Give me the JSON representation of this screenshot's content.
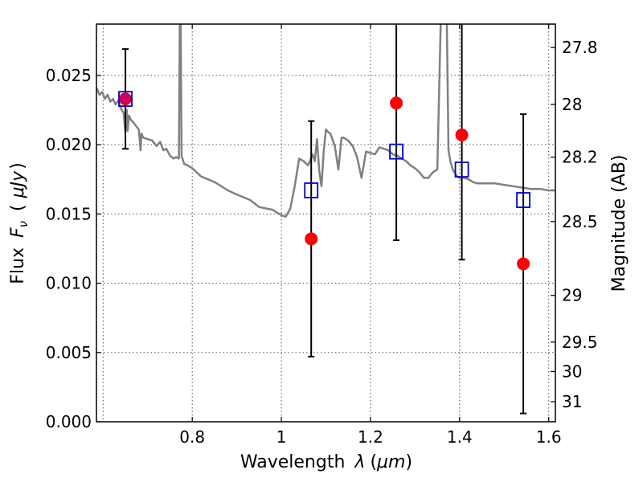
{
  "chart_data": {
    "type": "scatter",
    "xlabel": "Wavelength",
    "xlabel_symbol": "λ",
    "xlabel_unit": "μm",
    "ylabel": "Flux",
    "ylabel_symbol": "F",
    "ylabel_subscript": "ν",
    "ylabel_unit": "μJy",
    "y2label": "Magnitude (AB)",
    "xlim": [
      0.585,
      1.615
    ],
    "ylim": [
      0.0,
      0.0287
    ],
    "grid": true,
    "x_ticks": [
      {
        "value": 0.8,
        "label": "0.8"
      },
      {
        "value": 1.0,
        "label": "1"
      },
      {
        "value": 1.2,
        "label": "1.2"
      },
      {
        "value": 1.4,
        "label": "1.4"
      },
      {
        "value": 1.6,
        "label": "1.6"
      }
    ],
    "y_ticks": [
      {
        "value": 0.0,
        "label": "0.000"
      },
      {
        "value": 0.005,
        "label": "0.005"
      },
      {
        "value": 0.01,
        "label": "0.010"
      },
      {
        "value": 0.015,
        "label": "0.015"
      },
      {
        "value": 0.02,
        "label": "0.020"
      },
      {
        "value": 0.025,
        "label": "0.025"
      }
    ],
    "y2_ticks": [
      {
        "flux": 0.02701,
        "label": "27.8"
      },
      {
        "flux": 0.0229,
        "label": "28"
      },
      {
        "flux": 0.0191,
        "label": "28.2"
      },
      {
        "flux": 0.01445,
        "label": "28.5"
      },
      {
        "flux": 0.00912,
        "label": "29"
      },
      {
        "flux": 0.00575,
        "label": "29.5"
      },
      {
        "flux": 0.00363,
        "label": "30"
      },
      {
        "flux": 0.00145,
        "label": "31"
      }
    ],
    "series": [
      {
        "name": "model_sed",
        "style": "line",
        "color": "#808080",
        "x": [
          0.585,
          0.592,
          0.598,
          0.604,
          0.61,
          0.616,
          0.622,
          0.628,
          0.634,
          0.64,
          0.646,
          0.65,
          0.653,
          0.655,
          0.658,
          0.662,
          0.668,
          0.675,
          0.68,
          0.684,
          0.686,
          0.69,
          0.7,
          0.71,
          0.72,
          0.728,
          0.735,
          0.742,
          0.75,
          0.758,
          0.764,
          0.77,
          0.772,
          0.774,
          0.776,
          0.778,
          0.782,
          0.79,
          0.8,
          0.82,
          0.85,
          0.88,
          0.9,
          0.93,
          0.95,
          0.98,
          1.0,
          1.01,
          1.02,
          1.03,
          1.04,
          1.05,
          1.06,
          1.07,
          1.075,
          1.08,
          1.085,
          1.09,
          1.095,
          1.1,
          1.105,
          1.11,
          1.12,
          1.128,
          1.135,
          1.14,
          1.15,
          1.16,
          1.17,
          1.18,
          1.19,
          1.2,
          1.21,
          1.22,
          1.23,
          1.24,
          1.25,
          1.26,
          1.27,
          1.28,
          1.29,
          1.3,
          1.31,
          1.32,
          1.33,
          1.34,
          1.35,
          1.36,
          1.365,
          1.37,
          1.375,
          1.38,
          1.385,
          1.39,
          1.395,
          1.4,
          1.41,
          1.42,
          1.43,
          1.44,
          1.46,
          1.48,
          1.5,
          1.52,
          1.54,
          1.56,
          1.58,
          1.6,
          1.615
        ],
        "y": [
          0.0241,
          0.0236,
          0.0238,
          0.0233,
          0.0236,
          0.0231,
          0.0233,
          0.0229,
          0.0232,
          0.0226,
          0.0223,
          0.0209,
          0.0225,
          0.021,
          0.0221,
          0.0218,
          0.0216,
          0.0213,
          0.0211,
          0.0196,
          0.0208,
          0.0205,
          0.0204,
          0.0203,
          0.0199,
          0.0202,
          0.0196,
          0.0197,
          0.0192,
          0.019,
          0.0191,
          0.019,
          0.029,
          0.029,
          0.0192,
          0.019,
          0.0186,
          0.0185,
          0.0183,
          0.0177,
          0.0173,
          0.0167,
          0.0164,
          0.016,
          0.0155,
          0.0153,
          0.0149,
          0.0148,
          0.0154,
          0.017,
          0.019,
          0.0188,
          0.0185,
          0.0193,
          0.0188,
          0.0204,
          0.0181,
          0.017,
          0.0195,
          0.0211,
          0.0209,
          0.0208,
          0.0199,
          0.0182,
          0.0205,
          0.0205,
          0.0203,
          0.0199,
          0.0191,
          0.0176,
          0.0195,
          0.0194,
          0.0193,
          0.0198,
          0.0197,
          0.0196,
          0.0193,
          0.0192,
          0.019,
          0.0188,
          0.0185,
          0.0183,
          0.018,
          0.0176,
          0.0176,
          0.018,
          0.0182,
          0.032,
          0.032,
          0.032,
          0.0196,
          0.0187,
          0.0182,
          0.0179,
          0.0177,
          0.0176,
          0.0176,
          0.0175,
          0.0173,
          0.0172,
          0.0172,
          0.0172,
          0.0171,
          0.017,
          0.0169,
          0.0168,
          0.0168,
          0.0167,
          0.0167
        ]
      },
      {
        "name": "observed",
        "style": "marker",
        "marker": "circle",
        "color": "#ff0000",
        "points": [
          {
            "x": 0.65,
            "y": 0.0233,
            "yerr": 0.0036
          },
          {
            "x": 1.067,
            "y": 0.0132,
            "yerr": 0.0085
          },
          {
            "x": 1.258,
            "y": 0.023,
            "yerr": 0.0099
          },
          {
            "x": 1.405,
            "y": 0.0207,
            "yerr": 0.009
          },
          {
            "x": 1.543,
            "y": 0.0114,
            "yerr": 0.0108
          }
        ]
      },
      {
        "name": "model_bandpass",
        "style": "marker",
        "marker": "square-open",
        "color": "#0000cc",
        "points": [
          {
            "x": 0.65,
            "y": 0.0233
          },
          {
            "x": 1.067,
            "y": 0.0167
          },
          {
            "x": 1.258,
            "y": 0.0195
          },
          {
            "x": 1.405,
            "y": 0.0182
          },
          {
            "x": 1.543,
            "y": 0.016
          }
        ]
      }
    ]
  }
}
